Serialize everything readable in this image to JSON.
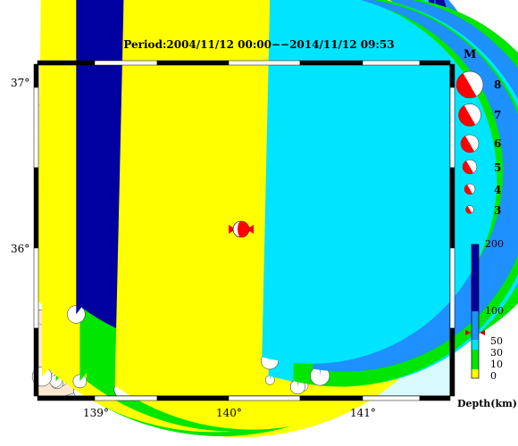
{
  "title": "Period:2004/11/12 00:00−−2014/11/12 09:53",
  "axes": {
    "lat_ticks": [
      "37°",
      "36°"
    ],
    "lon_ticks": [
      "139°",
      "140°",
      "141°"
    ]
  },
  "magnitude_legend": {
    "header": "M",
    "items": [
      "8",
      "7",
      "6",
      "5",
      "4",
      "3"
    ]
  },
  "depth_colorbar": {
    "label": "Depth(km)",
    "ticks": [
      "200",
      "100",
      "50",
      "30",
      "10",
      "0"
    ],
    "colors": {
      "0-10": "#ffff00",
      "10-30": "#00e600",
      "30-100": "#1e90ff",
      "100-200": "#0000a0",
      "50-100": "#00e5ff"
    }
  },
  "main_event": {
    "color": "#ff0000",
    "marker_color": "#ff0000"
  },
  "colors": {
    "land": "#fde8cf",
    "sea": "#d7fbff",
    "frame": "#000000"
  }
}
